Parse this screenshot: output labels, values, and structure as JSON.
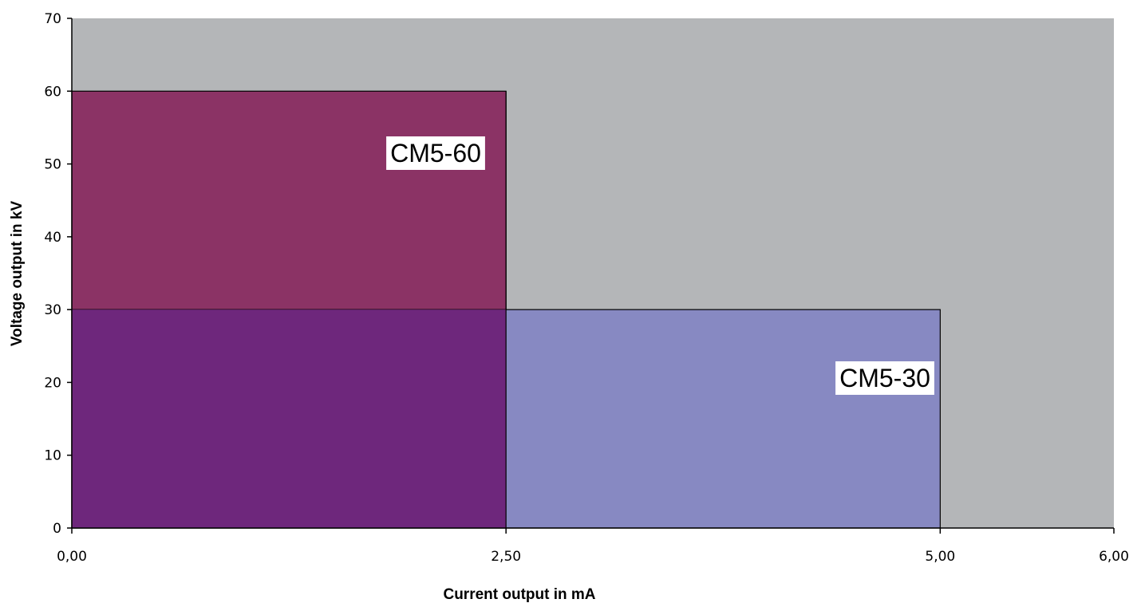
{
  "chart_data": {
    "type": "area",
    "title": "",
    "xlabel": "Current output in mA",
    "ylabel": "Voltage output in kV",
    "xlim": [
      0,
      6
    ],
    "ylim": [
      0,
      70
    ],
    "x_ticks": [
      {
        "value": 0,
        "label": "0,00"
      },
      {
        "value": 2.5,
        "label": "2,50"
      },
      {
        "value": 5,
        "label": "5,00"
      },
      {
        "value": 6,
        "label": "6,00"
      }
    ],
    "y_ticks": [
      {
        "value": 0,
        "label": "0"
      },
      {
        "value": 10,
        "label": "10"
      },
      {
        "value": 20,
        "label": "20"
      },
      {
        "value": 30,
        "label": "30"
      },
      {
        "value": 40,
        "label": "40"
      },
      {
        "value": 50,
        "label": "50"
      },
      {
        "value": 60,
        "label": "60"
      },
      {
        "value": 70,
        "label": "70"
      }
    ],
    "regions": [
      {
        "name": "CM5-60",
        "current_max_mA": 2.5,
        "voltage_max_kV": 60,
        "color": "#8b3365"
      },
      {
        "name": "CM5-30",
        "current_max_mA": 5.0,
        "voltage_max_kV": 30,
        "color": "#8789c2"
      }
    ],
    "overlap_color": "#6e277c",
    "plot_background": "#b4b6b8",
    "grid": false,
    "legend": "none"
  }
}
